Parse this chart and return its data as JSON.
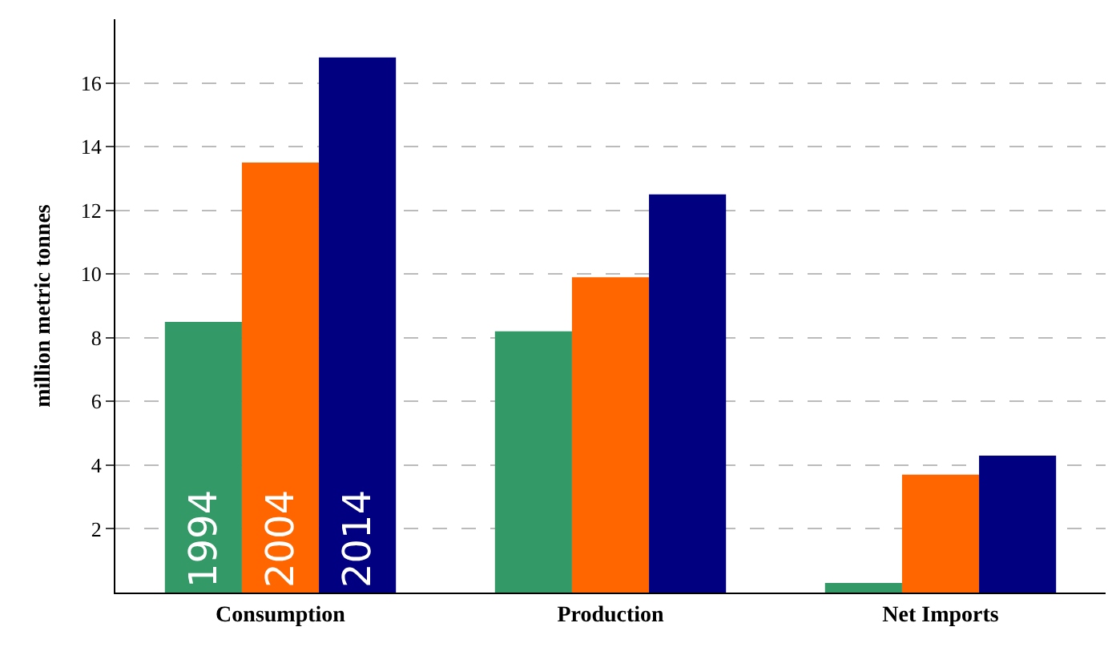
{
  "chart_data": {
    "type": "bar",
    "ylabel": "million metric tonnes",
    "categories": [
      "Consumption",
      "Production",
      "Net Imports"
    ],
    "series": [
      {
        "name": "1994",
        "color": "#339966",
        "values": [
          8.5,
          8.2,
          0.3
        ]
      },
      {
        "name": "2004",
        "color": "#ff6600",
        "values": [
          13.5,
          9.9,
          3.7
        ]
      },
      {
        "name": "2014",
        "color": "#000080",
        "values": [
          16.8,
          12.5,
          4.3
        ]
      }
    ],
    "ylim": [
      0,
      18
    ],
    "yticks": [
      2,
      4,
      6,
      8,
      10,
      12,
      14,
      16
    ],
    "grid": "y",
    "legend": false
  }
}
